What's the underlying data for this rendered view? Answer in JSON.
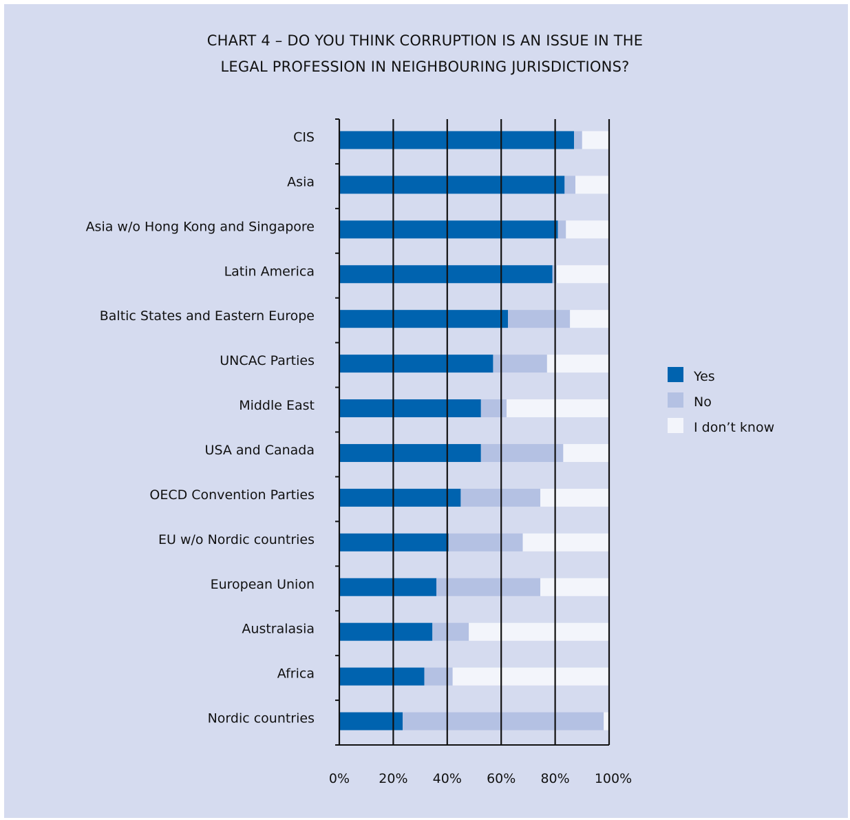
{
  "chart_data": {
    "type": "bar",
    "orientation": "horizontal",
    "stacked": true,
    "title_lines": [
      "CHART 4 – DO YOU THINK CORRUPTION IS AN ISSUE IN THE",
      "LEGAL PROFESSION IN NEIGHBOURING JURISDICTIONS?"
    ],
    "categories": [
      "CIS",
      "Asia",
      "Asia w/o Hong Kong and Singapore",
      "Latin America",
      "Baltic States and Eastern Europe",
      "UNCAC Parties",
      "Middle East",
      "USA and Canada",
      "OECD Convention Parties",
      "EU w/o Nordic countries",
      "European Union",
      "Australasia",
      "Africa",
      "Nordic countries"
    ],
    "series": [
      {
        "name": "Yes",
        "color": "#0063af",
        "values": [
          87,
          83.5,
          81,
          79,
          62.5,
          57,
          52.5,
          52.5,
          45,
          40.5,
          36,
          34.5,
          31.5,
          23.5
        ]
      },
      {
        "name": "No",
        "color": "#b4c1e3",
        "values": [
          3,
          4,
          3,
          1.5,
          23,
          20,
          9.5,
          30.5,
          29.5,
          27.5,
          38.5,
          13.5,
          10.5,
          74.5
        ]
      },
      {
        "name": "I don’t know",
        "color": "#f3f5fb",
        "values": [
          10,
          12.5,
          16,
          19.5,
          14.5,
          23,
          38,
          17,
          25.5,
          32,
          25.5,
          52,
          58,
          2
        ]
      }
    ],
    "xlim": [
      0,
      100
    ],
    "xticks": [
      "0%",
      "20%",
      "40%",
      "60%",
      "80%",
      "100%"
    ],
    "grid": "vertical",
    "legend_position": "right"
  },
  "colors": {
    "background": "#d5dbef",
    "axis": "#111111"
  }
}
